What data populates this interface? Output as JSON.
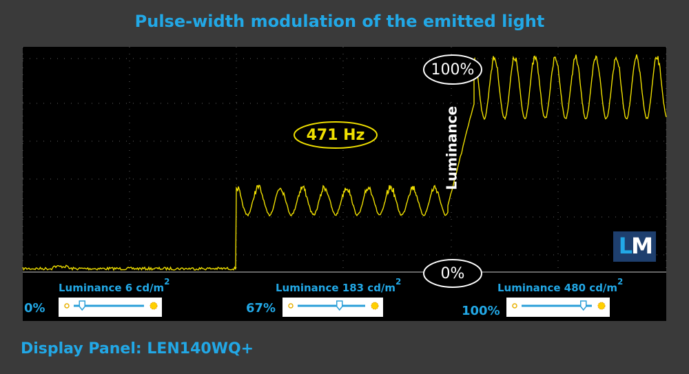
{
  "header": {
    "title": "Pulse-width modulation of the emitted light"
  },
  "plot": {
    "frequency": "471  Hz",
    "max_label": "100%",
    "min_label": "0%",
    "axis_label": "Luminance",
    "logo_l": "L",
    "logo_m": "M"
  },
  "panels": [
    {
      "label": "Luminance 6 cd/m",
      "superscript": "2",
      "level": "0%"
    },
    {
      "label": "Luminance 183 cd/m",
      "superscript": "2",
      "level": "67%"
    },
    {
      "label": "Luminance 480 cd/m",
      "superscript": "2",
      "level": "100%"
    }
  ],
  "footer": {
    "text": "Display Panel: LEN140WQ+"
  }
}
